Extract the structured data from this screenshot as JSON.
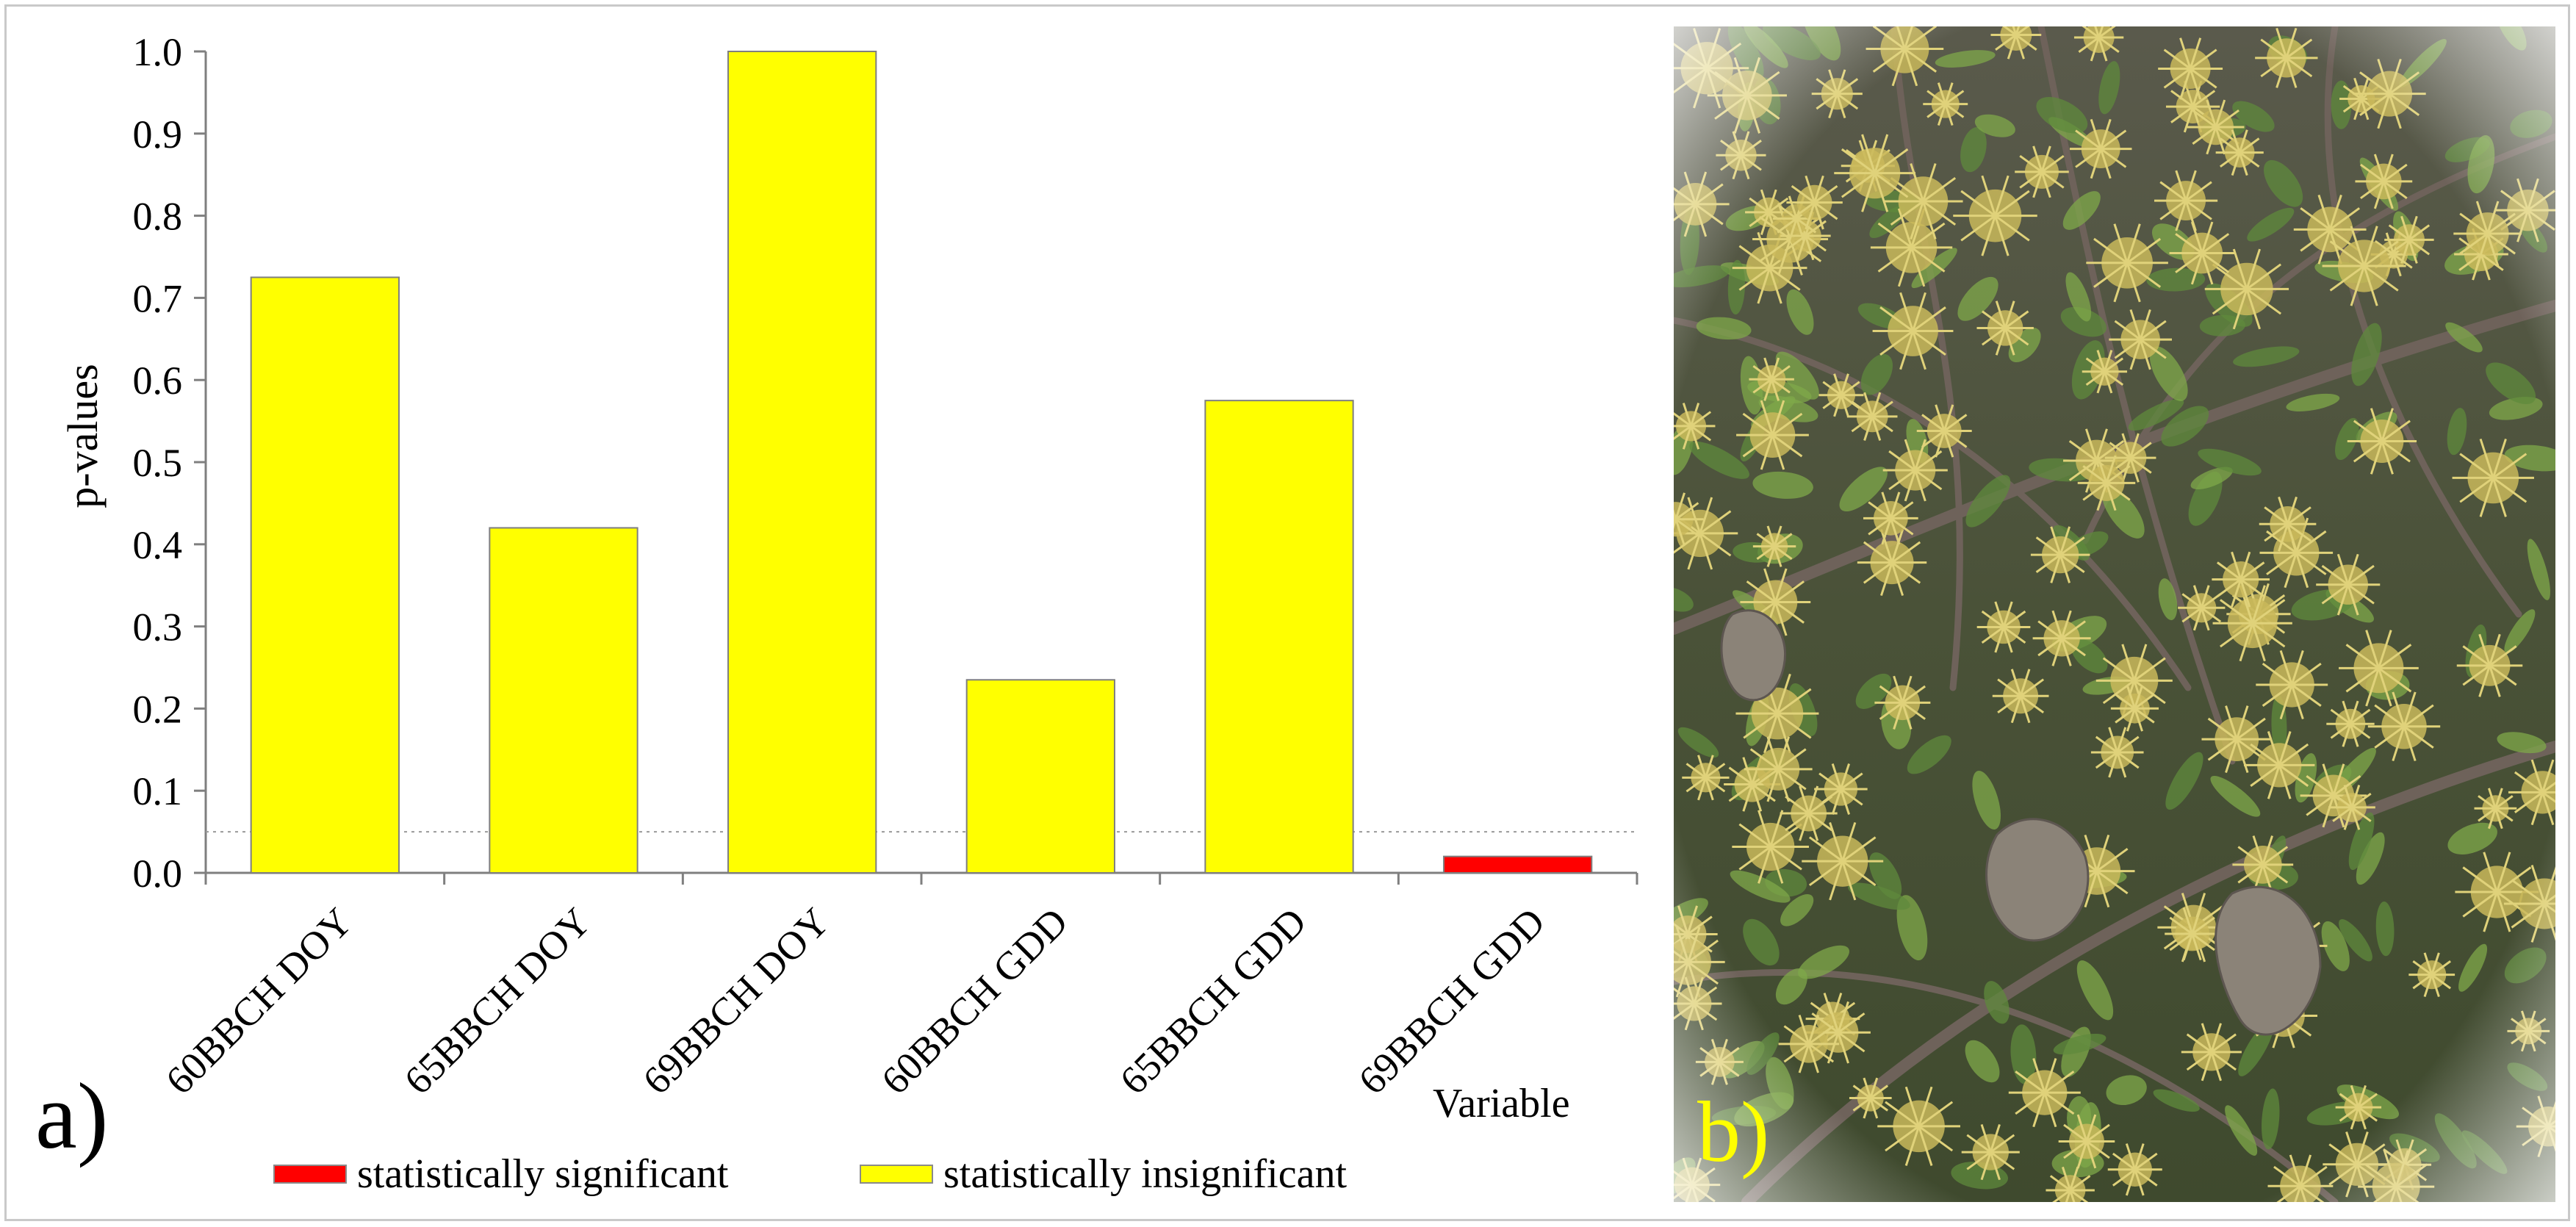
{
  "panel_labels": {
    "a": "a)",
    "b": "b)"
  },
  "chart_data": {
    "type": "bar",
    "categories": [
      "60BBCH DOY",
      "65BBCH DOY",
      "69BBCH DOY",
      "60BBCH GDD",
      "65BBCH GDD",
      "69BBCH GDD"
    ],
    "values": [
      0.725,
      0.42,
      1.0,
      0.235,
      0.575,
      0.02
    ],
    "significance": [
      "insignificant",
      "insignificant",
      "insignificant",
      "insignificant",
      "insignificant",
      "significant"
    ],
    "xlabel": "Variable",
    "ylabel": "p-values",
    "ylim": [
      0,
      1.0
    ],
    "yticks": [
      "0.0",
      "0.1",
      "0.2",
      "0.3",
      "0.4",
      "0.5",
      "0.6",
      "0.7",
      "0.8",
      "0.9",
      "1.0"
    ],
    "threshold": 0.05,
    "grid": false,
    "legend_position": "bottom",
    "legend": [
      {
        "label": "statistically significant",
        "color": "#ff0000"
      },
      {
        "label": "statistically insignificant",
        "color": "#ffff00"
      }
    ],
    "colors": {
      "significant": "#ff0000",
      "insignificant": "#ffff00",
      "bar_edge": "#7f7f7f"
    }
  }
}
